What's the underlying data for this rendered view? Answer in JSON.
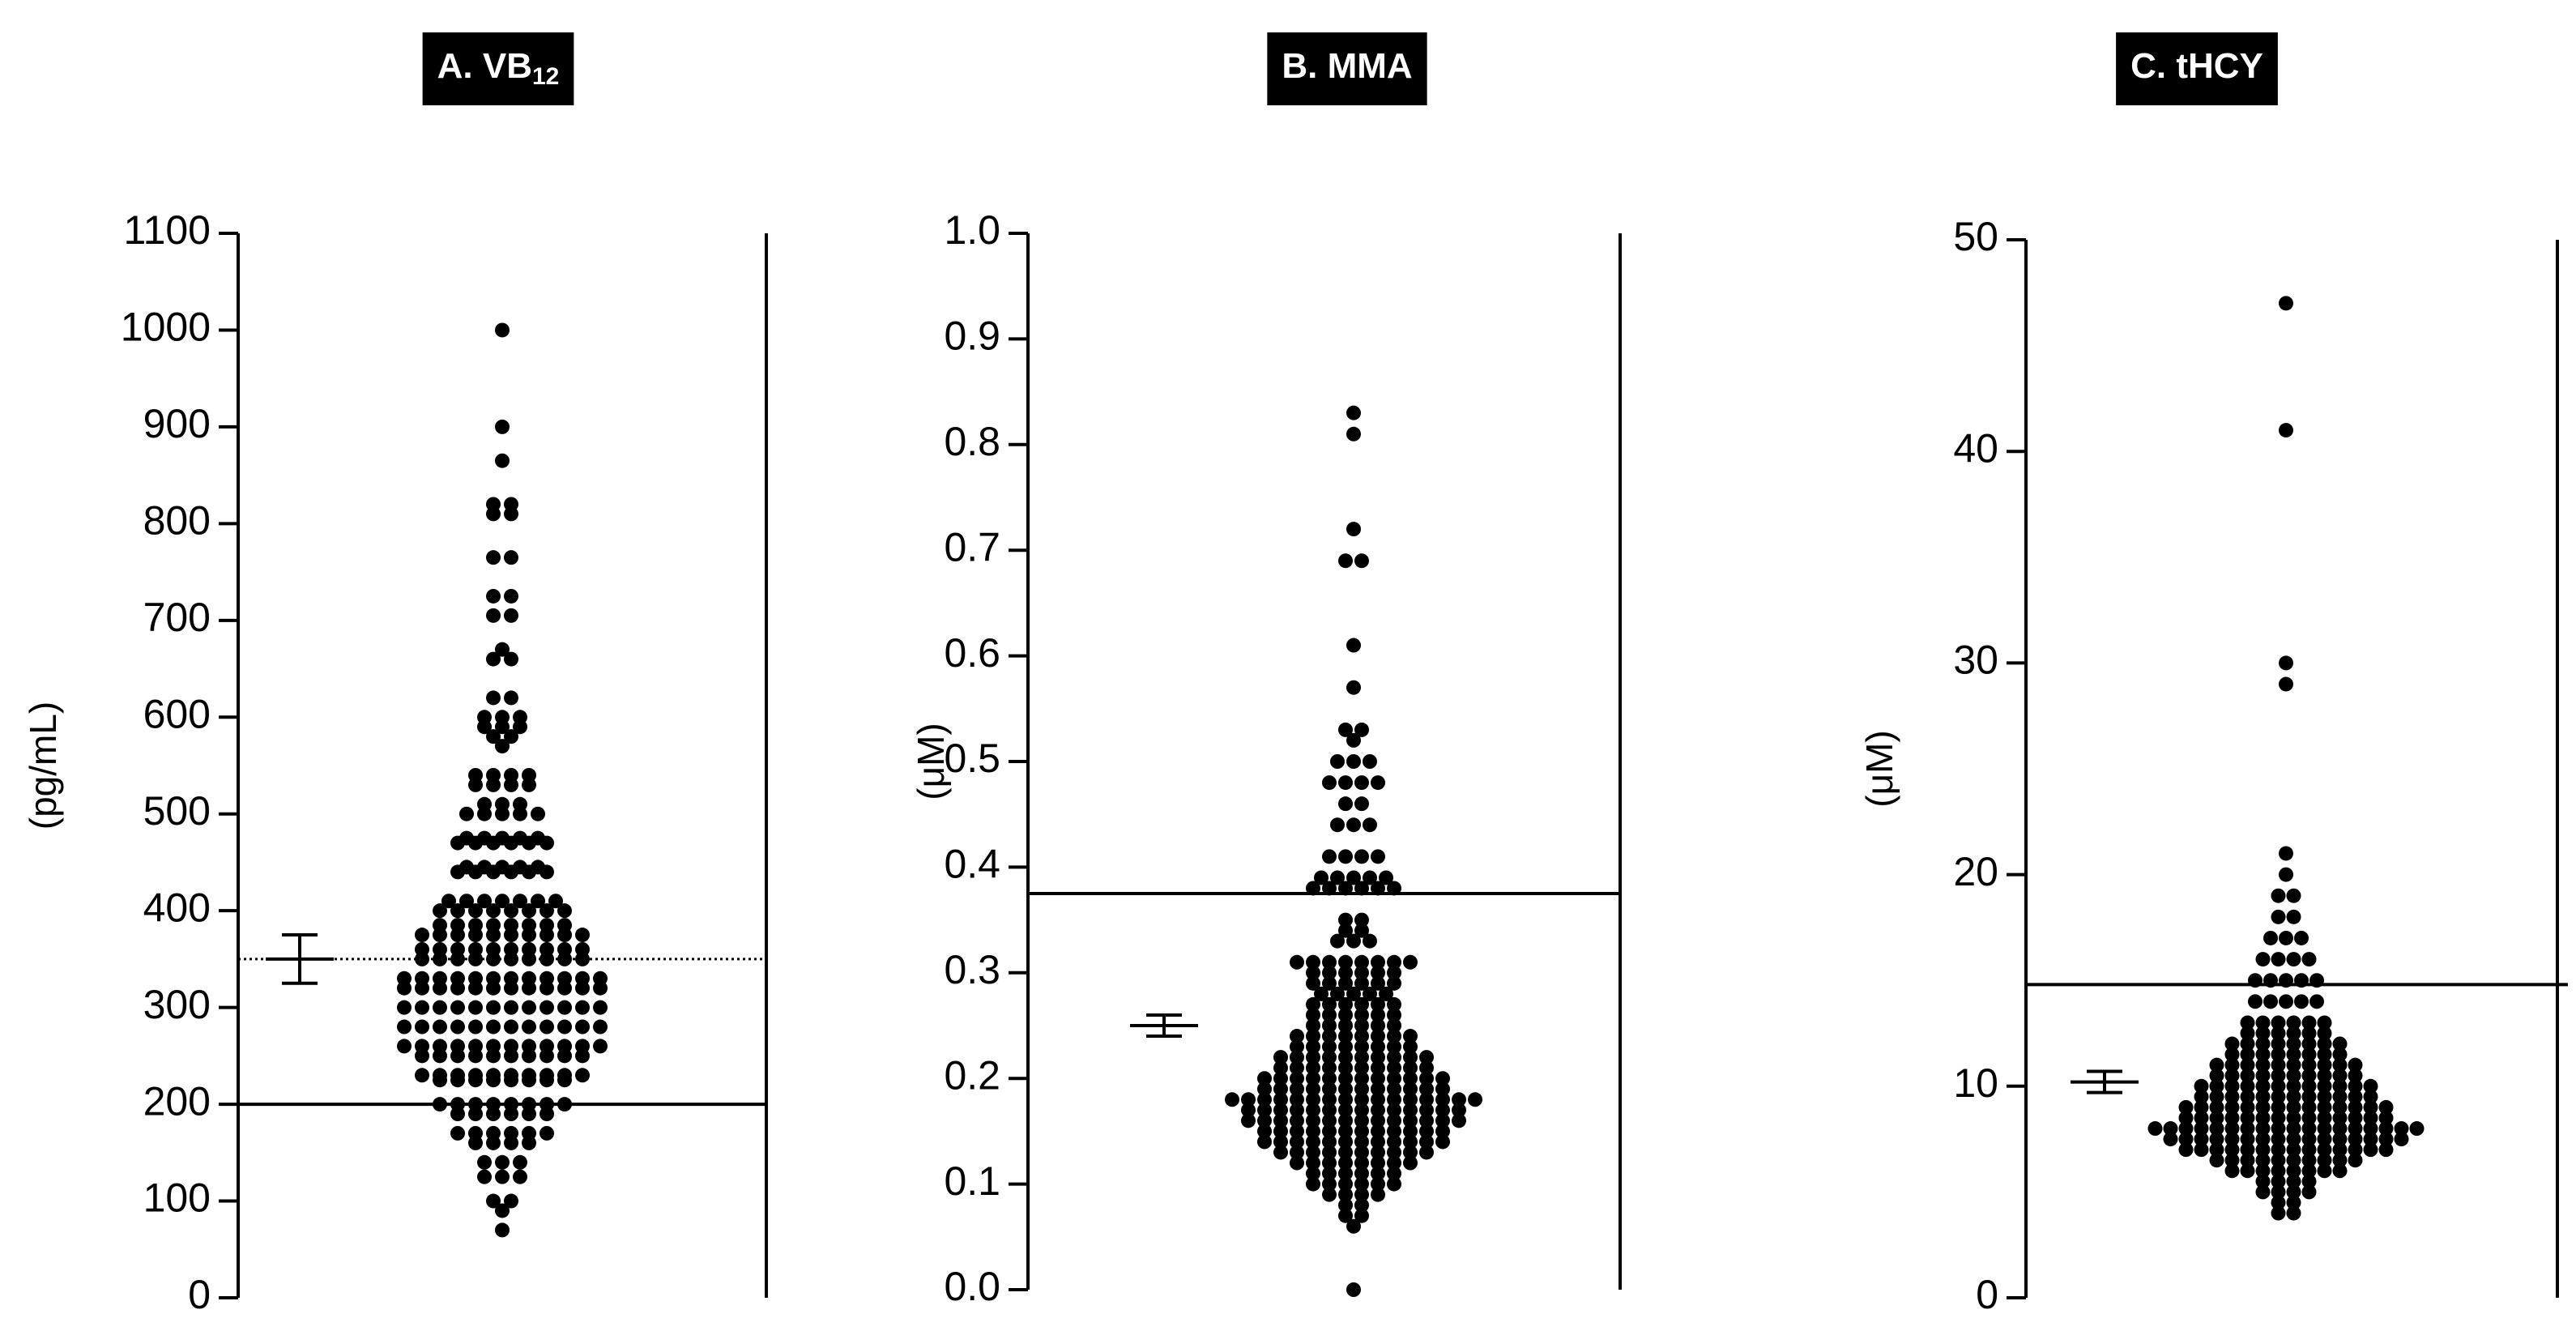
{
  "chart_data": [
    {
      "type": "dot",
      "title": "A. VB",
      "title_sub": "12",
      "ylabel": "(pg/mL)",
      "ylim": [
        0,
        1100
      ],
      "yticks": [
        0,
        100,
        200,
        300,
        400,
        500,
        600,
        700,
        800,
        900,
        1000,
        1100
      ],
      "mean": 350,
      "error": 25,
      "ref_lines": [
        {
          "value": 200,
          "style": "solid"
        },
        {
          "value": 350,
          "style": "dotted"
        }
      ],
      "values": [
        1000,
        900,
        865,
        820,
        820,
        810,
        810,
        765,
        765,
        725,
        725,
        705,
        705,
        670,
        660,
        660,
        620,
        620,
        600,
        600,
        600,
        590,
        590,
        590,
        580,
        580,
        570,
        540,
        540,
        540,
        540,
        530,
        530,
        530,
        530,
        510,
        510,
        510,
        500,
        500,
        500,
        500,
        500,
        475,
        475,
        475,
        475,
        475,
        470,
        470,
        470,
        470,
        470,
        470,
        445,
        445,
        445,
        445,
        445,
        440,
        440,
        440,
        440,
        440,
        440,
        410,
        410,
        410,
        410,
        410,
        410,
        410,
        400,
        400,
        400,
        400,
        400,
        400,
        400,
        400,
        385,
        385,
        385,
        385,
        385,
        385,
        385,
        385,
        375,
        375,
        375,
        375,
        375,
        375,
        375,
        375,
        375,
        375,
        360,
        360,
        360,
        360,
        360,
        360,
        360,
        360,
        360,
        360,
        350,
        350,
        350,
        350,
        350,
        350,
        350,
        350,
        350,
        350,
        330,
        330,
        330,
        330,
        330,
        330,
        330,
        330,
        330,
        330,
        330,
        330,
        320,
        320,
        320,
        320,
        320,
        320,
        320,
        320,
        320,
        320,
        320,
        320,
        300,
        300,
        300,
        300,
        300,
        300,
        300,
        300,
        300,
        300,
        300,
        300,
        280,
        280,
        280,
        280,
        280,
        280,
        280,
        280,
        280,
        280,
        280,
        280,
        260,
        260,
        260,
        260,
        260,
        260,
        260,
        260,
        260,
        260,
        260,
        260,
        250,
        250,
        250,
        250,
        250,
        250,
        250,
        250,
        250,
        250,
        230,
        230,
        230,
        230,
        230,
        230,
        230,
        230,
        230,
        230,
        225,
        225,
        225,
        225,
        225,
        225,
        225,
        225,
        200,
        200,
        200,
        200,
        200,
        200,
        200,
        200,
        190,
        190,
        190,
        190,
        190,
        190,
        170,
        170,
        170,
        170,
        170,
        170,
        160,
        160,
        160,
        160,
        140,
        140,
        140,
        125,
        125,
        125,
        100,
        100,
        90,
        70
      ]
    },
    {
      "type": "dot",
      "title": "B. MMA",
      "ylabel": "(μM)",
      "ylim": [
        0,
        1
      ],
      "yticks": [
        {
          "value": 0,
          "label": "0.0"
        },
        0.1,
        0.2,
        0.3,
        0.4,
        0.5,
        0.6,
        0.7,
        0.8,
        0.9,
        {
          "value": 1,
          "label": "1.0"
        }
      ],
      "mean": 0.25,
      "error": 0.01,
      "ref_lines": [
        {
          "value": 0.375,
          "style": "solid"
        }
      ],
      "values": [
        0.83,
        0.81,
        0.72,
        0.69,
        0.69,
        0.61,
        0.57,
        0.53,
        0.53,
        0.52,
        0.5,
        0.5,
        0.5,
        0.48,
        0.48,
        0.48,
        0.48,
        0.46,
        0.46,
        0.44,
        0.44,
        0.44,
        0.41,
        0.41,
        0.41,
        0.41,
        0.39,
        0.39,
        0.39,
        0.39,
        0.39,
        0.38,
        0.38,
        0.38,
        0.38,
        0.38,
        0.38,
        0.35,
        0.35,
        0.34,
        0.34,
        0.33,
        0.33,
        0.33,
        0.31,
        0.31,
        0.31,
        0.31,
        0.31,
        0.31,
        0.31,
        0.31,
        0.3,
        0.3,
        0.3,
        0.3,
        0.3,
        0.3,
        0.29,
        0.29,
        0.29,
        0.29,
        0.29,
        0.29,
        0.28,
        0.28,
        0.28,
        0.28,
        0.28,
        0.27,
        0.27,
        0.27,
        0.27,
        0.27,
        0.27,
        0.26,
        0.26,
        0.26,
        0.26,
        0.26,
        0.26,
        0.25,
        0.25,
        0.25,
        0.25,
        0.25,
        0.25,
        0.24,
        0.24,
        0.24,
        0.24,
        0.24,
        0.24,
        0.24,
        0.24,
        0.23,
        0.23,
        0.23,
        0.23,
        0.23,
        0.23,
        0.23,
        0.23,
        0.22,
        0.22,
        0.22,
        0.22,
        0.22,
        0.22,
        0.22,
        0.22,
        0.22,
        0.22,
        0.21,
        0.21,
        0.21,
        0.21,
        0.21,
        0.21,
        0.21,
        0.21,
        0.21,
        0.21,
        0.2,
        0.2,
        0.2,
        0.2,
        0.2,
        0.2,
        0.2,
        0.2,
        0.2,
        0.2,
        0.2,
        0.2,
        0.19,
        0.19,
        0.19,
        0.19,
        0.19,
        0.19,
        0.19,
        0.19,
        0.19,
        0.19,
        0.19,
        0.19,
        0.18,
        0.18,
        0.18,
        0.18,
        0.18,
        0.18,
        0.18,
        0.18,
        0.18,
        0.18,
        0.18,
        0.18,
        0.18,
        0.18,
        0.18,
        0.18,
        0.17,
        0.17,
        0.17,
        0.17,
        0.17,
        0.17,
        0.17,
        0.17,
        0.17,
        0.17,
        0.17,
        0.17,
        0.17,
        0.17,
        0.16,
        0.16,
        0.16,
        0.16,
        0.16,
        0.16,
        0.16,
        0.16,
        0.16,
        0.16,
        0.16,
        0.16,
        0.16,
        0.16,
        0.15,
        0.15,
        0.15,
        0.15,
        0.15,
        0.15,
        0.15,
        0.15,
        0.15,
        0.15,
        0.15,
        0.15,
        0.14,
        0.14,
        0.14,
        0.14,
        0.14,
        0.14,
        0.14,
        0.14,
        0.14,
        0.14,
        0.14,
        0.14,
        0.13,
        0.13,
        0.13,
        0.13,
        0.13,
        0.13,
        0.13,
        0.13,
        0.13,
        0.13,
        0.12,
        0.12,
        0.12,
        0.12,
        0.12,
        0.12,
        0.12,
        0.12,
        0.11,
        0.11,
        0.11,
        0.11,
        0.11,
        0.11,
        0.1,
        0.1,
        0.1,
        0.1,
        0.1,
        0.1,
        0.09,
        0.09,
        0.09,
        0.09,
        0.08,
        0.08,
        0.07,
        0.07,
        0.06,
        0
      ]
    },
    {
      "type": "dot",
      "title": "C. tHCY",
      "ylabel": "(μM)",
      "ylim": [
        0,
        50
      ],
      "yticks": [
        0,
        10,
        20,
        30,
        40,
        50
      ],
      "mean": 10.2,
      "error": 0.5,
      "ref_lines": [
        {
          "value": 14.8,
          "style": "solid"
        }
      ],
      "values": [
        47,
        41,
        30,
        29,
        21,
        20,
        19,
        19,
        18,
        18,
        17,
        17,
        17,
        16,
        16,
        16,
        16,
        15,
        15,
        15,
        15,
        15,
        14,
        14,
        14,
        14,
        14,
        13,
        13,
        13,
        13,
        13,
        13,
        12.5,
        12.5,
        12.5,
        12.5,
        12.5,
        12.5,
        12,
        12,
        12,
        12,
        12,
        12,
        12,
        12,
        11.5,
        11.5,
        11.5,
        11.5,
        11.5,
        11.5,
        11.5,
        11.5,
        11,
        11,
        11,
        11,
        11,
        11,
        11,
        11,
        11,
        11,
        10.5,
        10.5,
        10.5,
        10.5,
        10.5,
        10.5,
        10.5,
        10.5,
        10.5,
        10.5,
        10,
        10,
        10,
        10,
        10,
        10,
        10,
        10,
        10,
        10,
        10,
        10,
        9.5,
        9.5,
        9.5,
        9.5,
        9.5,
        9.5,
        9.5,
        9.5,
        9.5,
        9.5,
        9.5,
        9.5,
        9,
        9,
        9,
        9,
        9,
        9,
        9,
        9,
        9,
        9,
        9,
        9,
        9,
        9,
        8.5,
        8.5,
        8.5,
        8.5,
        8.5,
        8.5,
        8.5,
        8.5,
        8.5,
        8.5,
        8.5,
        8.5,
        8.5,
        8.5,
        8,
        8,
        8,
        8,
        8,
        8,
        8,
        8,
        8,
        8,
        8,
        8,
        8,
        8,
        8,
        8,
        8,
        8,
        7.5,
        7.5,
        7.5,
        7.5,
        7.5,
        7.5,
        7.5,
        7.5,
        7.5,
        7.5,
        7.5,
        7.5,
        7.5,
        7.5,
        7.5,
        7.5,
        7,
        7,
        7,
        7,
        7,
        7,
        7,
        7,
        7,
        7,
        7,
        7,
        7,
        7,
        6.5,
        6.5,
        6.5,
        6.5,
        6.5,
        6.5,
        6.5,
        6.5,
        6.5,
        6.5,
        6,
        6,
        6,
        6,
        6,
        6,
        6,
        6,
        5.5,
        5.5,
        5.5,
        5.5,
        5,
        5,
        5,
        5,
        4.5,
        4.5,
        4,
        4
      ]
    }
  ]
}
